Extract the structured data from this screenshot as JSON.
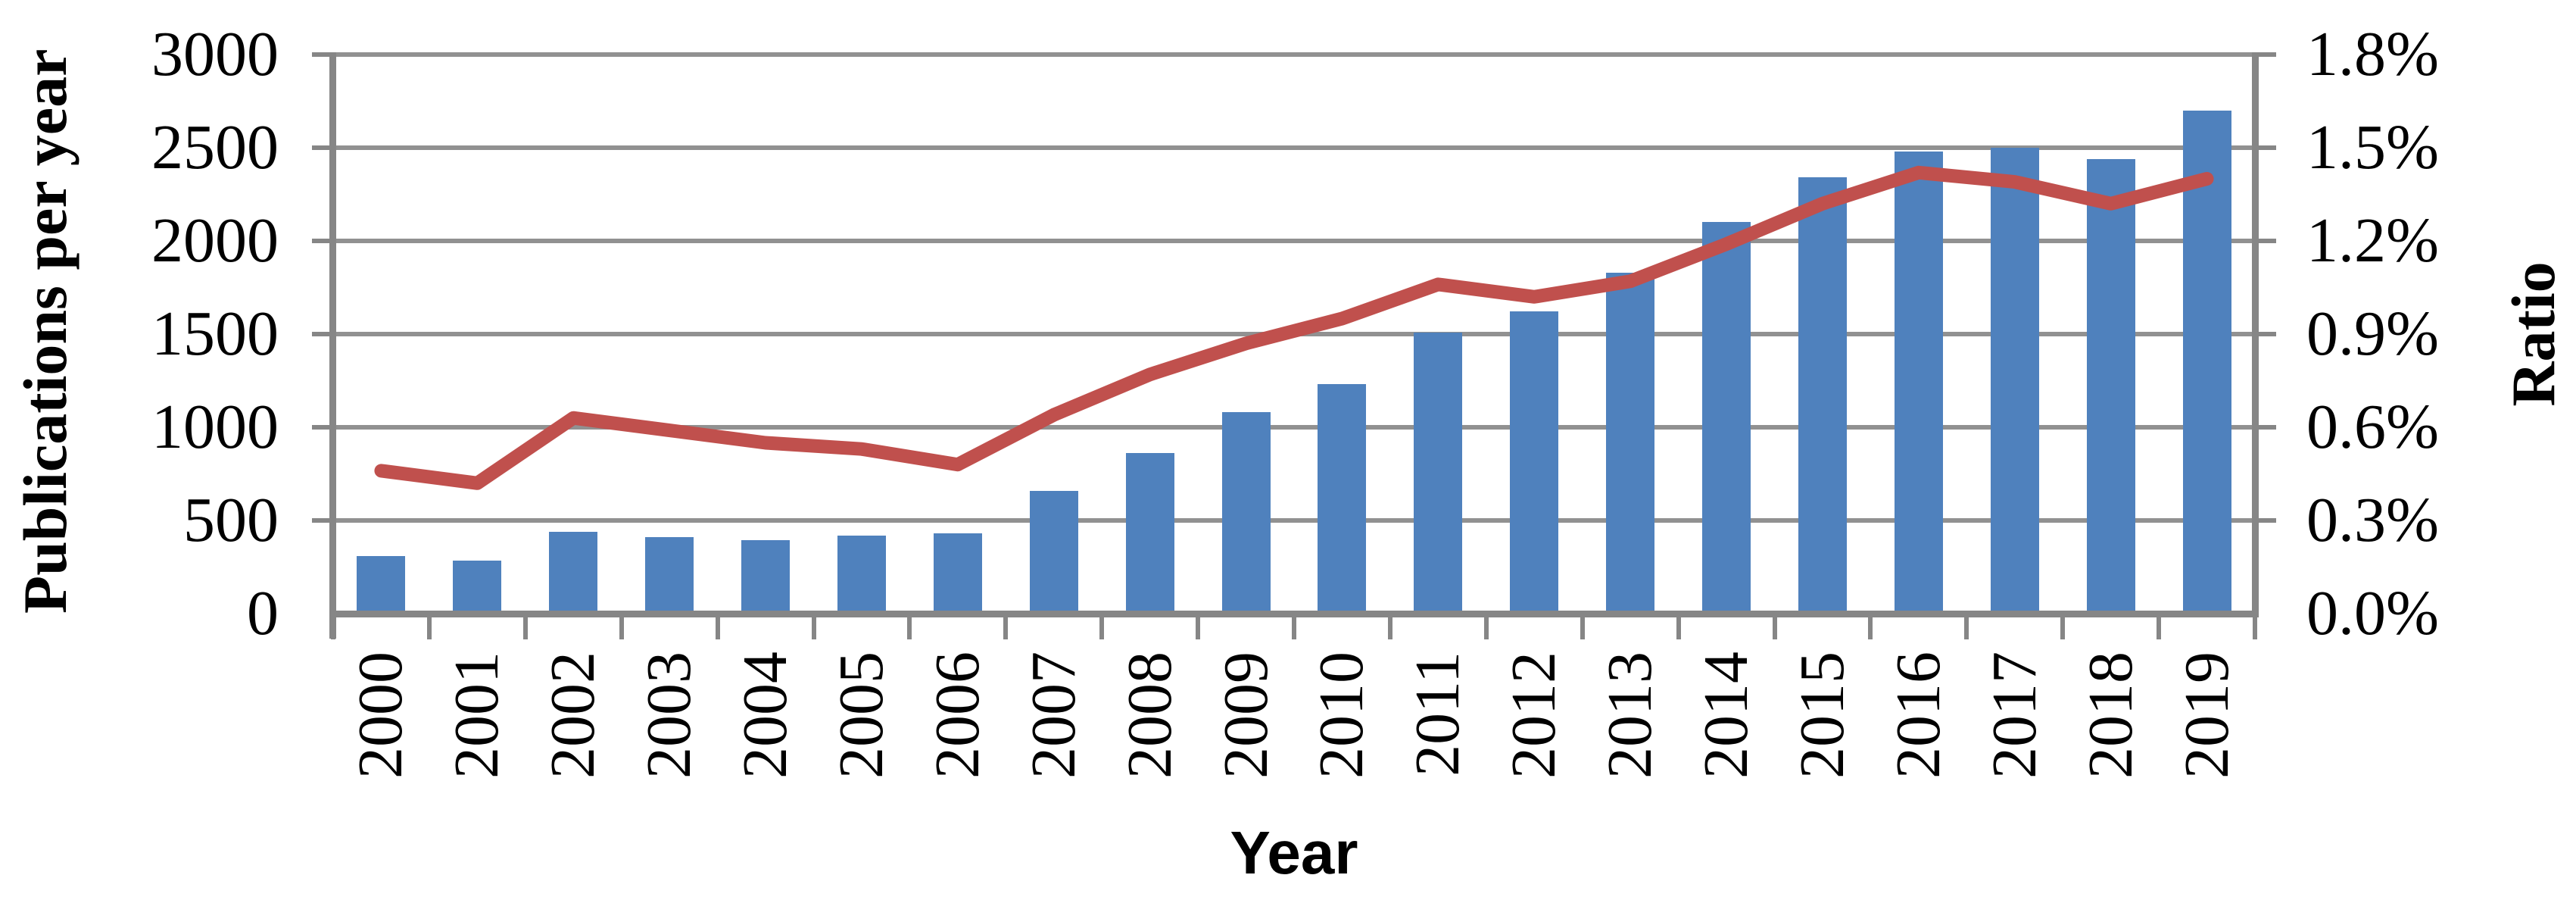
{
  "chart_data": {
    "type": "combo-bar-line",
    "title": "",
    "legend_position": "none",
    "grid": true,
    "categories": [
      "2000",
      "2001",
      "2002",
      "2003",
      "2004",
      "2005",
      "2006",
      "2007",
      "2008",
      "2009",
      "2010",
      "2011",
      "2012",
      "2013",
      "2014",
      "2015",
      "2016",
      "2017",
      "2018",
      "2019"
    ],
    "series": [
      {
        "name": "Publications per year",
        "type": "bar",
        "axis": "left",
        "color": "#4F81BD",
        "values": [
          310,
          285,
          440,
          410,
          395,
          420,
          430,
          660,
          860,
          1080,
          1230,
          1510,
          1620,
          1830,
          2100,
          2340,
          2480,
          2500,
          2440,
          2700
        ]
      },
      {
        "name": "Ratio",
        "type": "line",
        "axis": "right",
        "color": "#C0504D",
        "values_percent": [
          0.46,
          0.42,
          0.63,
          0.59,
          0.55,
          0.53,
          0.48,
          0.64,
          0.77,
          0.87,
          0.95,
          1.06,
          1.02,
          1.07,
          1.19,
          1.32,
          1.42,
          1.39,
          1.32,
          1.4
        ]
      }
    ],
    "left_axis": {
      "title": "Publications per year",
      "min": 0,
      "max": 3000,
      "step": 500,
      "tick_labels": [
        "3000",
        "2500",
        "2000",
        "1500",
        "1000",
        "500",
        "0"
      ]
    },
    "right_axis": {
      "title": "Ratio",
      "min": 0.0,
      "max": 1.8,
      "step": 0.3,
      "tick_labels": [
        "1.8%",
        "1.5%",
        "1.2%",
        "0.9%",
        "0.6%",
        "0.3%",
        "0.0%"
      ]
    },
    "x_axis": {
      "title": "Year"
    },
    "colors": {
      "bar": "#4F81BD",
      "line": "#C0504D",
      "gridline": "#919191",
      "axis": "#868686",
      "text": "#000000",
      "background": "#FFFFFF"
    }
  }
}
